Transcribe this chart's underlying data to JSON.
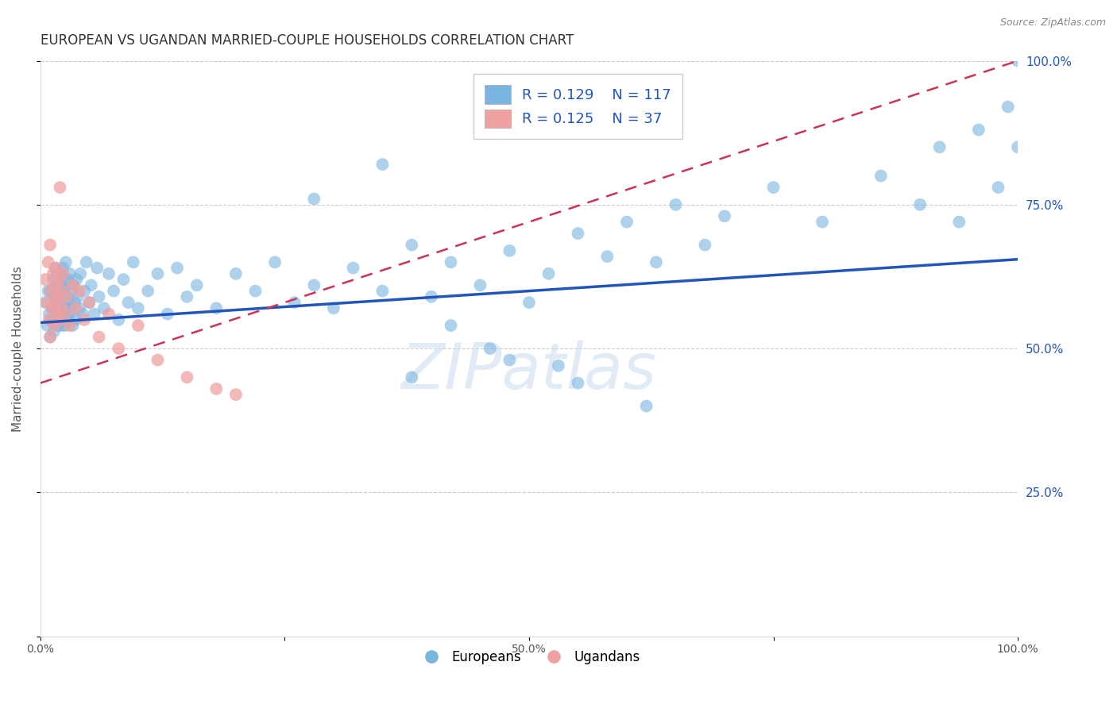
{
  "title": "EUROPEAN VS UGANDAN MARRIED-COUPLE HOUSEHOLDS CORRELATION CHART",
  "source": "Source: ZipAtlas.com",
  "ylabel": "Married-couple Households",
  "watermark": "ZIPatlas",
  "xlim": [
    0.0,
    1.0
  ],
  "ylim": [
    0.0,
    1.0
  ],
  "xticks": [
    0.0,
    0.25,
    0.5,
    0.75,
    1.0
  ],
  "xticklabels": [
    "0.0%",
    "",
    "50.0%",
    "",
    "100.0%"
  ],
  "yticks": [
    0.0,
    0.25,
    0.5,
    0.75,
    1.0
  ],
  "yticklabels_right": [
    "",
    "25.0%",
    "50.0%",
    "75.0%",
    "100.0%"
  ],
  "blue_R": "0.129",
  "blue_N": "117",
  "pink_R": "0.125",
  "pink_N": "37",
  "blue_color": "#7ab4e0",
  "pink_color": "#f0a0a0",
  "trendline_blue_color": "#2255bb",
  "trendline_pink_color": "#cc3355",
  "blue_line_start_y": 0.545,
  "blue_line_end_y": 0.655,
  "pink_line_start_y": 0.44,
  "pink_line_end_y": 1.0,
  "legend_blue_label": "R = 0.129    N = 117",
  "legend_pink_label": "R = 0.125    N = 37",
  "background_color": "#ffffff",
  "grid_color": "#cccccc",
  "title_fontsize": 12,
  "label_fontsize": 11,
  "tick_fontsize": 10,
  "legend_fontsize": 13,
  "blue_x": [
    0.005,
    0.007,
    0.008,
    0.009,
    0.01,
    0.01,
    0.011,
    0.012,
    0.013,
    0.014,
    0.015,
    0.015,
    0.015,
    0.016,
    0.016,
    0.017,
    0.017,
    0.018,
    0.018,
    0.019,
    0.019,
    0.02,
    0.02,
    0.02,
    0.021,
    0.021,
    0.022,
    0.022,
    0.023,
    0.023,
    0.024,
    0.024,
    0.025,
    0.025,
    0.026,
    0.026,
    0.027,
    0.028,
    0.028,
    0.029,
    0.03,
    0.03,
    0.031,
    0.032,
    0.033,
    0.034,
    0.035,
    0.036,
    0.037,
    0.038,
    0.04,
    0.041,
    0.043,
    0.045,
    0.047,
    0.05,
    0.052,
    0.055,
    0.058,
    0.06,
    0.065,
    0.07,
    0.075,
    0.08,
    0.085,
    0.09,
    0.095,
    0.1,
    0.11,
    0.12,
    0.13,
    0.14,
    0.15,
    0.16,
    0.18,
    0.2,
    0.22,
    0.24,
    0.26,
    0.28,
    0.3,
    0.32,
    0.35,
    0.38,
    0.4,
    0.42,
    0.45,
    0.48,
    0.5,
    0.52,
    0.55,
    0.58,
    0.6,
    0.63,
    0.65,
    0.68,
    0.7,
    0.75,
    0.8,
    0.86,
    0.9,
    0.92,
    0.94,
    0.96,
    0.98,
    0.99,
    1.0,
    1.0,
    0.35,
    0.28,
    0.42,
    0.48,
    0.55,
    0.62,
    0.38,
    0.46,
    0.53
  ],
  "blue_y": [
    0.58,
    0.54,
    0.6,
    0.56,
    0.52,
    0.6,
    0.55,
    0.57,
    0.62,
    0.53,
    0.59,
    0.64,
    0.55,
    0.58,
    0.61,
    0.56,
    0.63,
    0.54,
    0.6,
    0.57,
    0.61,
    0.55,
    0.58,
    0.63,
    0.56,
    0.6,
    0.54,
    0.61,
    0.57,
    0.64,
    0.56,
    0.6,
    0.54,
    0.62,
    0.57,
    0.65,
    0.59,
    0.55,
    0.62,
    0.58,
    0.56,
    0.63,
    0.57,
    0.6,
    0.54,
    0.61,
    0.58,
    0.55,
    0.62,
    0.59,
    0.57,
    0.63,
    0.56,
    0.6,
    0.65,
    0.58,
    0.61,
    0.56,
    0.64,
    0.59,
    0.57,
    0.63,
    0.6,
    0.55,
    0.62,
    0.58,
    0.65,
    0.57,
    0.6,
    0.63,
    0.56,
    0.64,
    0.59,
    0.61,
    0.57,
    0.63,
    0.6,
    0.65,
    0.58,
    0.61,
    0.57,
    0.64,
    0.6,
    0.68,
    0.59,
    0.65,
    0.61,
    0.67,
    0.58,
    0.63,
    0.7,
    0.66,
    0.72,
    0.65,
    0.75,
    0.68,
    0.73,
    0.78,
    0.72,
    0.8,
    0.75,
    0.85,
    0.72,
    0.88,
    0.78,
    0.92,
    0.85,
    1.0,
    0.82,
    0.76,
    0.54,
    0.48,
    0.44,
    0.4,
    0.45,
    0.5,
    0.47
  ],
  "pink_x": [
    0.005,
    0.007,
    0.008,
    0.009,
    0.01,
    0.01,
    0.011,
    0.012,
    0.013,
    0.014,
    0.015,
    0.015,
    0.016,
    0.017,
    0.018,
    0.019,
    0.02,
    0.021,
    0.022,
    0.023,
    0.025,
    0.027,
    0.03,
    0.033,
    0.036,
    0.04,
    0.045,
    0.05,
    0.06,
    0.07,
    0.08,
    0.1,
    0.12,
    0.15,
    0.18,
    0.2,
    0.02
  ],
  "pink_y": [
    0.62,
    0.58,
    0.65,
    0.55,
    0.68,
    0.52,
    0.6,
    0.57,
    0.63,
    0.54,
    0.61,
    0.58,
    0.64,
    0.56,
    0.59,
    0.62,
    0.55,
    0.6,
    0.57,
    0.63,
    0.56,
    0.59,
    0.54,
    0.61,
    0.57,
    0.6,
    0.55,
    0.58,
    0.52,
    0.56,
    0.5,
    0.54,
    0.48,
    0.45,
    0.43,
    0.42,
    0.78
  ]
}
